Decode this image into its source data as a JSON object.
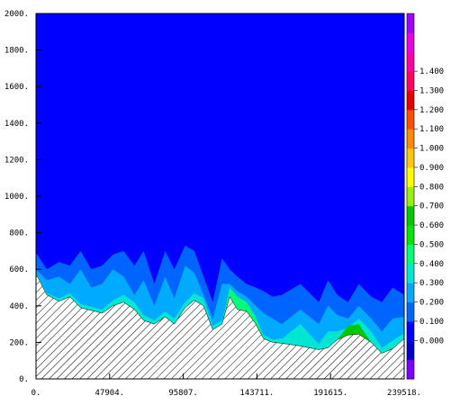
{
  "chart_data": {
    "type": "heatmap",
    "title": "",
    "xlabel": "",
    "ylabel": "",
    "xlim": [
      0,
      239518
    ],
    "ylim": [
      0,
      2000
    ],
    "x_ticks": [
      "0.",
      "47904.",
      "95807.",
      "143711.",
      "191615.",
      "239518."
    ],
    "y_ticks": [
      "0.",
      "200.",
      "400.",
      "600.",
      "800.",
      "1000.",
      "1200.",
      "1400.",
      "1600.",
      "1800.",
      "2000."
    ],
    "background_value_color": "#0000ff",
    "terrain": {
      "fill": "hatched",
      "x": [
        0,
        7000,
        15000,
        22000,
        29000,
        36000,
        43000,
        50000,
        57000,
        64000,
        70000,
        77000,
        84000,
        90000,
        97000,
        103000,
        109000,
        115000,
        121000,
        126000,
        131000,
        137000,
        143000,
        148000,
        154000,
        160000,
        172000,
        184000,
        190000,
        196000,
        203000,
        210000,
        218000,
        225000,
        232000,
        239518
      ],
      "height": [
        575,
        460,
        425,
        450,
        390,
        375,
        360,
        400,
        420,
        380,
        320,
        300,
        340,
        300,
        390,
        430,
        400,
        270,
        300,
        450,
        380,
        370,
        300,
        220,
        200,
        195,
        180,
        160,
        170,
        215,
        240,
        245,
        200,
        140,
        165,
        220
      ]
    },
    "contours": [
      {
        "level": 0.2,
        "color": "#0064ff",
        "x": [
          0,
          7000,
          15000,
          22000,
          29000,
          36000,
          43000,
          50000,
          57000,
          64000,
          70000,
          77000,
          84000,
          90000,
          97000,
          103000,
          109000,
          115000,
          121000,
          126000,
          131000,
          137000,
          143000,
          148000,
          154000,
          160000,
          172000,
          184000,
          190000,
          196000,
          203000,
          210000,
          218000,
          225000,
          232000,
          239518
        ],
        "top": [
          690,
          600,
          640,
          620,
          700,
          600,
          620,
          680,
          700,
          620,
          700,
          520,
          700,
          600,
          730,
          700,
          560,
          420,
          660,
          600,
          560,
          520,
          500,
          480,
          450,
          460,
          520,
          420,
          540,
          460,
          420,
          520,
          450,
          420,
          500,
          460
        ]
      },
      {
        "level": 0.3,
        "color": "#00aaff",
        "x": [
          0,
          7000,
          15000,
          22000,
          29000,
          36000,
          43000,
          50000,
          57000,
          64000,
          70000,
          77000,
          84000,
          90000,
          97000,
          103000,
          109000,
          115000,
          121000,
          126000,
          131000,
          137000,
          143000,
          148000,
          154000,
          160000,
          172000,
          184000,
          190000,
          196000,
          203000,
          210000,
          218000,
          225000,
          232000,
          239518
        ],
        "top": [
          600,
          540,
          560,
          520,
          600,
          500,
          520,
          600,
          560,
          460,
          540,
          400,
          560,
          440,
          620,
          580,
          460,
          330,
          520,
          520,
          480,
          450,
          400,
          360,
          330,
          300,
          380,
          300,
          400,
          350,
          330,
          400,
          330,
          260,
          330,
          340
        ]
      },
      {
        "level": 0.4,
        "color": "#00e6d2",
        "x": [
          0,
          7000,
          15000,
          22000,
          29000,
          36000,
          43000,
          50000,
          57000,
          64000,
          70000,
          77000,
          84000,
          90000,
          97000,
          103000,
          109000,
          115000,
          121000,
          126000,
          131000,
          137000,
          143000,
          148000,
          154000,
          160000,
          172000,
          184000,
          190000,
          196000,
          203000,
          210000,
          218000,
          225000,
          232000,
          239518
        ],
        "top": [
          580,
          470,
          440,
          470,
          410,
          395,
          380,
          430,
          460,
          420,
          350,
          320,
          370,
          330,
          420,
          470,
          440,
          290,
          320,
          480,
          420,
          410,
          330,
          240,
          215,
          220,
          300,
          190,
          260,
          260,
          280,
          330,
          260,
          170,
          210,
          250
        ]
      },
      {
        "level": 0.5,
        "color": "#00ff78",
        "x": [
          121000,
          126000,
          131000,
          137000,
          143000,
          148000
        ],
        "top": [
          300,
          500,
          450,
          420,
          340,
          220
        ]
      },
      {
        "level": 0.6,
        "color": "#00c800",
        "x": [
          196000,
          203000,
          210000,
          218000
        ],
        "top": [
          215,
          290,
          300,
          200
        ]
      }
    ],
    "colorbar": {
      "labels": [
        "0.000",
        "0.100",
        "0.200",
        "0.300",
        "0.400",
        "0.500",
        "0.600",
        "0.700",
        "0.800",
        "0.900",
        "1.000",
        "1.100",
        "1.200",
        "1.300",
        "1.400"
      ],
      "colors": [
        "#8000ff",
        "#0000c8",
        "#0000ff",
        "#0064ff",
        "#00aaff",
        "#00e6d2",
        "#00ff78",
        "#00e600",
        "#00c800",
        "#96f000",
        "#ffff00",
        "#ffc800",
        "#ff8c00",
        "#ff5000",
        "#e60000",
        "#ff0064",
        "#ff00a0",
        "#e600e6",
        "#a000ff"
      ]
    }
  }
}
